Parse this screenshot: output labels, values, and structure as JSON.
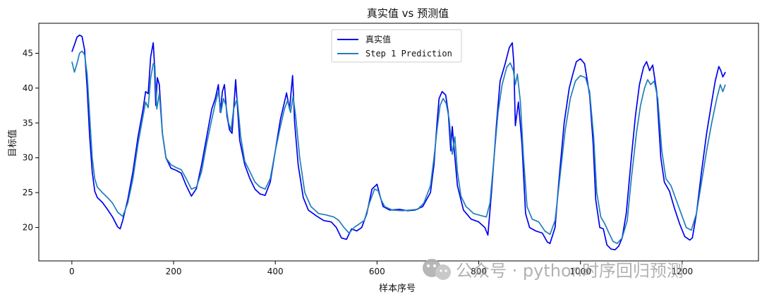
{
  "chart_data": {
    "type": "line",
    "title": "真实值 vs 预测值",
    "xlabel": "样本序号",
    "ylabel": "目标值",
    "xlim": [
      -65,
      1350
    ],
    "ylim": [
      15.2,
      49.3
    ],
    "xticks": [
      0,
      200,
      400,
      600,
      800,
      1000,
      1200
    ],
    "yticks": [
      20,
      25,
      30,
      35,
      40,
      45
    ],
    "grid": false,
    "legend": "upper-center",
    "series": [
      {
        "name": "真实值",
        "color": "#0000ee",
        "points": [
          [
            0,
            45.2
          ],
          [
            5,
            46.2
          ],
          [
            10,
            47.3
          ],
          [
            15,
            47.6
          ],
          [
            20,
            47.4
          ],
          [
            25,
            45.5
          ],
          [
            30,
            40
          ],
          [
            35,
            33
          ],
          [
            40,
            28
          ],
          [
            45,
            25.2
          ],
          [
            50,
            24.3
          ],
          [
            60,
            23.6
          ],
          [
            70,
            22.6
          ],
          [
            80,
            21.5
          ],
          [
            90,
            20.1
          ],
          [
            95,
            19.8
          ],
          [
            100,
            21
          ],
          [
            110,
            24
          ],
          [
            120,
            28
          ],
          [
            130,
            33
          ],
          [
            140,
            37
          ],
          [
            145,
            39.5
          ],
          [
            150,
            39.2
          ],
          [
            155,
            44.5
          ],
          [
            160,
            46.5
          ],
          [
            162,
            44
          ],
          [
            165,
            37.5
          ],
          [
            168,
            41.5
          ],
          [
            172,
            40.5
          ],
          [
            178,
            33.5
          ],
          [
            185,
            30
          ],
          [
            195,
            28.5
          ],
          [
            205,
            28.2
          ],
          [
            215,
            27.8
          ],
          [
            225,
            26
          ],
          [
            235,
            24.5
          ],
          [
            245,
            25.6
          ],
          [
            255,
            29
          ],
          [
            265,
            33
          ],
          [
            275,
            37
          ],
          [
            282,
            38.5
          ],
          [
            288,
            40.5
          ],
          [
            292,
            36.5
          ],
          [
            296,
            39.5
          ],
          [
            300,
            40.5
          ],
          [
            305,
            36
          ],
          [
            310,
            34
          ],
          [
            315,
            33.5
          ],
          [
            322,
            41.2
          ],
          [
            330,
            32.5
          ],
          [
            340,
            29
          ],
          [
            350,
            27
          ],
          [
            360,
            25.5
          ],
          [
            370,
            24.8
          ],
          [
            380,
            24.6
          ],
          [
            390,
            26.5
          ],
          [
            400,
            31
          ],
          [
            410,
            35.5
          ],
          [
            418,
            38
          ],
          [
            422,
            39.3
          ],
          [
            428,
            37
          ],
          [
            434,
            41.8
          ],
          [
            438,
            35
          ],
          [
            445,
            29
          ],
          [
            455,
            24.3
          ],
          [
            465,
            22.5
          ],
          [
            480,
            21.7
          ],
          [
            495,
            21
          ],
          [
            510,
            20.8
          ],
          [
            520,
            20
          ],
          [
            530,
            18.5
          ],
          [
            540,
            18.3
          ],
          [
            550,
            19.8
          ],
          [
            560,
            19.5
          ],
          [
            570,
            20
          ],
          [
            580,
            22
          ],
          [
            590,
            25.5
          ],
          [
            600,
            26.2
          ],
          [
            606,
            24.5
          ],
          [
            612,
            23
          ],
          [
            625,
            22.5
          ],
          [
            645,
            22.6
          ],
          [
            660,
            22.4
          ],
          [
            675,
            22.5
          ],
          [
            690,
            23
          ],
          [
            705,
            25
          ],
          [
            712,
            29
          ],
          [
            718,
            35
          ],
          [
            722,
            38.5
          ],
          [
            728,
            39.5
          ],
          [
            735,
            39
          ],
          [
            740,
            36.5
          ],
          [
            745,
            31
          ],
          [
            748,
            34.5
          ],
          [
            752,
            31
          ],
          [
            758,
            26
          ],
          [
            770,
            22.5
          ],
          [
            785,
            21.2
          ],
          [
            800,
            20.8
          ],
          [
            812,
            20
          ],
          [
            818,
            18.9
          ],
          [
            825,
            25
          ],
          [
            835,
            35
          ],
          [
            842,
            41
          ],
          [
            852,
            43.5
          ],
          [
            860,
            45.8
          ],
          [
            866,
            46.5
          ],
          [
            869,
            43.5
          ],
          [
            872,
            34.6
          ],
          [
            878,
            38
          ],
          [
            885,
            32
          ],
          [
            892,
            22
          ],
          [
            900,
            20
          ],
          [
            912,
            19.5
          ],
          [
            925,
            19.2
          ],
          [
            935,
            17.9
          ],
          [
            940,
            17.7
          ],
          [
            950,
            20
          ],
          [
            958,
            27
          ],
          [
            968,
            35
          ],
          [
            978,
            40
          ],
          [
            985,
            42
          ],
          [
            992,
            43.8
          ],
          [
            1000,
            44.2
          ],
          [
            1008,
            43.5
          ],
          [
            1018,
            39
          ],
          [
            1025,
            32
          ],
          [
            1030,
            24
          ],
          [
            1038,
            20
          ],
          [
            1045,
            19.8
          ],
          [
            1052,
            17.5
          ],
          [
            1060,
            16.9
          ],
          [
            1068,
            16.8
          ],
          [
            1075,
            17.3
          ],
          [
            1082,
            18.5
          ],
          [
            1090,
            22
          ],
          [
            1100,
            30
          ],
          [
            1108,
            36
          ],
          [
            1116,
            40.5
          ],
          [
            1124,
            43
          ],
          [
            1130,
            43.8
          ],
          [
            1136,
            42.5
          ],
          [
            1142,
            43.3
          ],
          [
            1150,
            39.5
          ],
          [
            1158,
            30
          ],
          [
            1165,
            26.5
          ],
          [
            1175,
            25.2
          ],
          [
            1185,
            22.7
          ],
          [
            1195,
            20.5
          ],
          [
            1205,
            18.7
          ],
          [
            1215,
            18.2
          ],
          [
            1220,
            18.5
          ],
          [
            1228,
            22
          ],
          [
            1238,
            28
          ],
          [
            1248,
            33.5
          ],
          [
            1258,
            38
          ],
          [
            1265,
            41
          ],
          [
            1272,
            43.1
          ],
          [
            1276,
            42.5
          ],
          [
            1280,
            41.6
          ],
          [
            1285,
            42.3
          ]
        ]
      },
      {
        "name": "Step 1 Prediction",
        "color": "#1f7fb8",
        "points": [
          [
            0,
            43.8
          ],
          [
            5,
            42.3
          ],
          [
            10,
            43.5
          ],
          [
            15,
            45
          ],
          [
            20,
            45.3
          ],
          [
            25,
            44.8
          ],
          [
            30,
            42
          ],
          [
            35,
            36
          ],
          [
            40,
            30
          ],
          [
            45,
            27
          ],
          [
            50,
            25.8
          ],
          [
            60,
            25
          ],
          [
            70,
            24.3
          ],
          [
            80,
            23.5
          ],
          [
            90,
            22.2
          ],
          [
            100,
            21.6
          ],
          [
            110,
            23.5
          ],
          [
            120,
            27
          ],
          [
            130,
            32
          ],
          [
            140,
            36
          ],
          [
            145,
            38
          ],
          [
            150,
            37.2
          ],
          [
            155,
            41.5
          ],
          [
            160,
            43.5
          ],
          [
            163,
            43.3
          ],
          [
            167,
            37
          ],
          [
            172,
            39.2
          ],
          [
            178,
            33.5
          ],
          [
            185,
            30
          ],
          [
            195,
            29
          ],
          [
            205,
            28.6
          ],
          [
            215,
            28.3
          ],
          [
            225,
            27
          ],
          [
            235,
            25.5
          ],
          [
            245,
            25.8
          ],
          [
            255,
            28
          ],
          [
            265,
            32
          ],
          [
            275,
            35.5
          ],
          [
            282,
            37.8
          ],
          [
            288,
            39.5
          ],
          [
            293,
            36.5
          ],
          [
            298,
            38.5
          ],
          [
            303,
            37.5
          ],
          [
            308,
            35
          ],
          [
            313,
            34
          ],
          [
            318,
            37
          ],
          [
            325,
            38.5
          ],
          [
            332,
            33
          ],
          [
            340,
            29.5
          ],
          [
            350,
            28
          ],
          [
            360,
            26.5
          ],
          [
            370,
            25.8
          ],
          [
            380,
            25.5
          ],
          [
            390,
            27
          ],
          [
            400,
            31
          ],
          [
            410,
            34.5
          ],
          [
            418,
            37
          ],
          [
            424,
            38.2
          ],
          [
            430,
            36.5
          ],
          [
            435,
            38.8
          ],
          [
            440,
            36
          ],
          [
            448,
            30
          ],
          [
            458,
            25
          ],
          [
            470,
            23
          ],
          [
            485,
            22
          ],
          [
            500,
            21.8
          ],
          [
            515,
            21.5
          ],
          [
            525,
            21
          ],
          [
            535,
            20
          ],
          [
            545,
            19.2
          ],
          [
            555,
            20
          ],
          [
            565,
            20.5
          ],
          [
            575,
            21
          ],
          [
            585,
            23.5
          ],
          [
            595,
            25.5
          ],
          [
            602,
            25.3
          ],
          [
            608,
            24
          ],
          [
            615,
            23
          ],
          [
            630,
            22.5
          ],
          [
            650,
            22.4
          ],
          [
            665,
            22.5
          ],
          [
            680,
            22.6
          ],
          [
            692,
            23.5
          ],
          [
            705,
            26
          ],
          [
            712,
            30
          ],
          [
            718,
            34
          ],
          [
            724,
            37.5
          ],
          [
            730,
            38.5
          ],
          [
            736,
            37.8
          ],
          [
            742,
            35.5
          ],
          [
            748,
            30.5
          ],
          [
            753,
            33
          ],
          [
            758,
            28
          ],
          [
            765,
            24.5
          ],
          [
            775,
            23
          ],
          [
            790,
            22
          ],
          [
            805,
            21.7
          ],
          [
            815,
            21.5
          ],
          [
            822,
            23.5
          ],
          [
            830,
            30
          ],
          [
            838,
            36.5
          ],
          [
            846,
            40.5
          ],
          [
            855,
            43
          ],
          [
            862,
            43.6
          ],
          [
            868,
            42.5
          ],
          [
            872,
            40.5
          ],
          [
            876,
            42
          ],
          [
            882,
            38
          ],
          [
            888,
            30
          ],
          [
            895,
            23
          ],
          [
            905,
            21.2
          ],
          [
            918,
            20.8
          ],
          [
            930,
            19.5
          ],
          [
            940,
            19
          ],
          [
            950,
            21
          ],
          [
            960,
            27.5
          ],
          [
            970,
            34
          ],
          [
            980,
            38.5
          ],
          [
            990,
            41
          ],
          [
            1000,
            41.8
          ],
          [
            1010,
            41.5
          ],
          [
            1018,
            39.5
          ],
          [
            1026,
            33
          ],
          [
            1032,
            25
          ],
          [
            1040,
            21.5
          ],
          [
            1048,
            20.5
          ],
          [
            1056,
            19.2
          ],
          [
            1064,
            18
          ],
          [
            1072,
            17.7
          ],
          [
            1082,
            18.5
          ],
          [
            1092,
            21
          ],
          [
            1100,
            27
          ],
          [
            1110,
            33.5
          ],
          [
            1118,
            37.5
          ],
          [
            1126,
            40
          ],
          [
            1132,
            41.2
          ],
          [
            1138,
            40.5
          ],
          [
            1145,
            41
          ],
          [
            1152,
            38.5
          ],
          [
            1160,
            31
          ],
          [
            1168,
            27
          ],
          [
            1178,
            26
          ],
          [
            1188,
            24
          ],
          [
            1198,
            22
          ],
          [
            1208,
            20
          ],
          [
            1218,
            19.6
          ],
          [
            1228,
            22
          ],
          [
            1238,
            26.5
          ],
          [
            1248,
            31
          ],
          [
            1258,
            35
          ],
          [
            1268,
            38.5
          ],
          [
            1275,
            40.5
          ],
          [
            1280,
            39.5
          ],
          [
            1285,
            40.5
          ]
        ]
      }
    ]
  },
  "watermark": {
    "icon": "wechat-icon",
    "text": "公众号 · python时序回归预测"
  }
}
